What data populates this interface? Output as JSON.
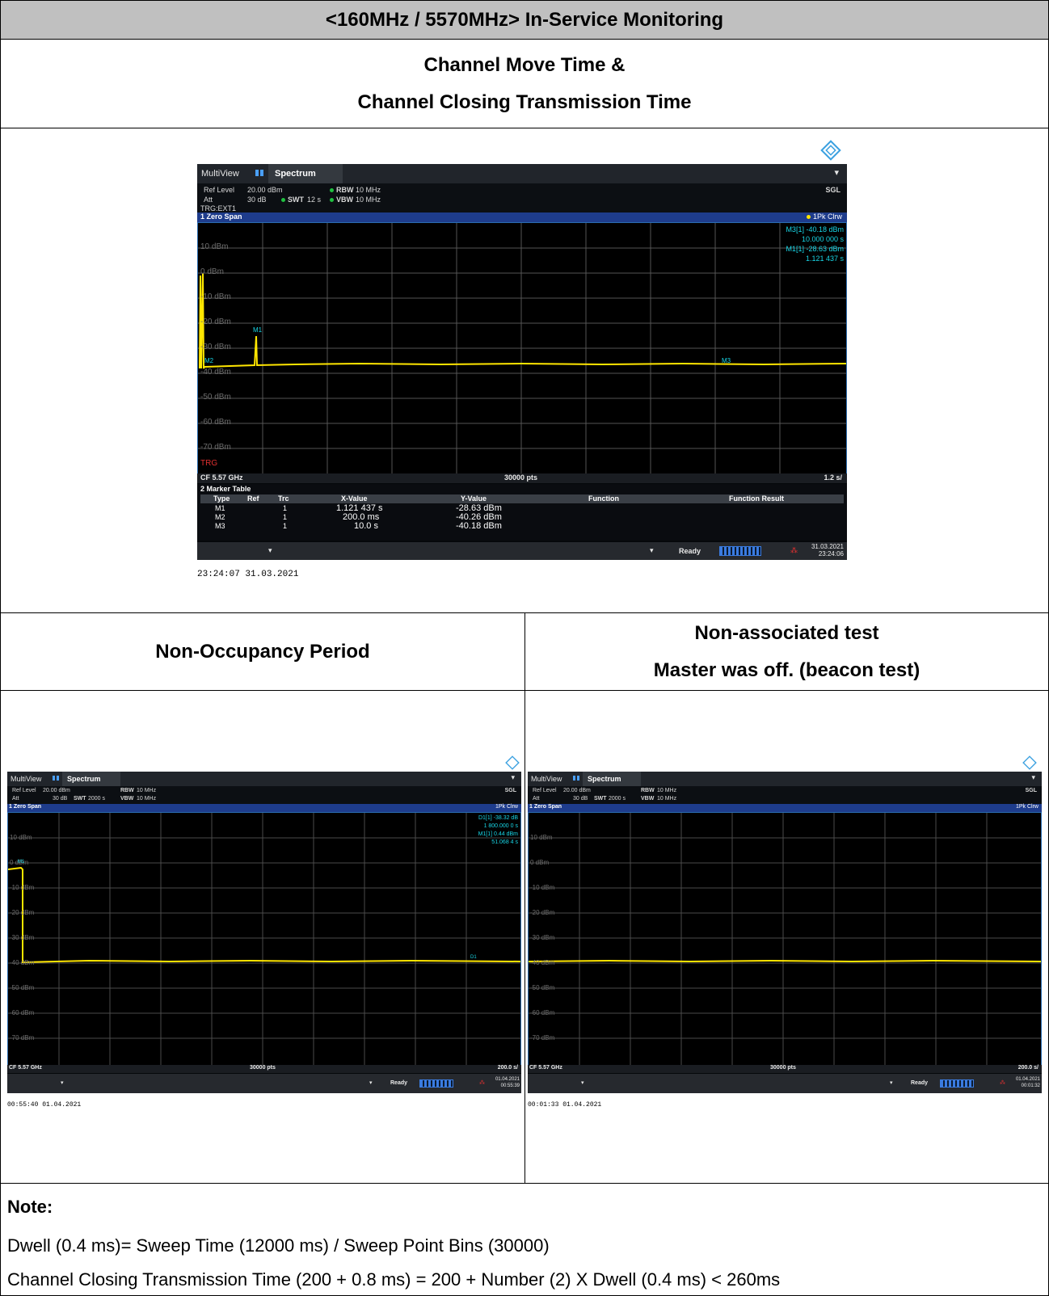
{
  "header": {
    "title": "<160MHz / 5570MHz> In-Service Monitoring"
  },
  "sub": {
    "line1": "Channel Move Time &",
    "line2": "Channel Closing Transmission Time"
  },
  "shot_main": {
    "tab": "Spectrum",
    "app": "MultiView",
    "ref_level": "Ref Level",
    "ref_val": "20.00 dBm",
    "att": "Att",
    "att_val": "30 dB",
    "swt": "SWT",
    "swt_val": "12 s",
    "rbw": "RBW",
    "rbw_val": "10 MHz",
    "vbw": "VBW",
    "vbw_val": "10 MHz",
    "trg": "TRG:EXT1",
    "sgl": "SGL",
    "window": "1 Zero Span",
    "trace": "1Pk Clrw",
    "m3_label": "M3[1]",
    "m3_y": "-40.18 dBm",
    "m3_x": "10.000 000 s",
    "m1_label": "M1[1]",
    "m1_y": "-28.63 dBm",
    "m1_x": "1.121 437 s",
    "y_labels": [
      "10 dBm",
      "0 dBm",
      "-10 dBm",
      "-20 dBm",
      "-30 dBm",
      "-40 dBm",
      "-50 dBm",
      "-60 dBm",
      "-70 dBm"
    ],
    "trg_tag": "TRG",
    "cf": "CF 5.57 GHz",
    "pts": "30000 pts",
    "div": "1.2 s/",
    "mt_title": "2 Marker Table",
    "mt_cols": [
      "Type",
      "Ref",
      "Trc",
      "X-Value",
      "Y-Value",
      "Function",
      "Function Result"
    ],
    "mt_rows": [
      {
        "type": "M1",
        "ref": "",
        "trc": "1",
        "x": "1.121 437 s",
        "y": "-28.63 dBm"
      },
      {
        "type": "M2",
        "ref": "",
        "trc": "1",
        "x": "200.0 ms",
        "y": "-40.26 dBm"
      },
      {
        "type": "M3",
        "ref": "",
        "trc": "1",
        "x": "10.0 s",
        "y": "-40.18 dBm"
      }
    ],
    "status": "Ready",
    "date": "31.03.2021",
    "time": "23:24:06",
    "markers": {
      "m1": "M1",
      "m2": "M2",
      "m3": "M3"
    },
    "timestamp": "23:24:07  31.03.2021"
  },
  "heads": {
    "left": "Non-Occupancy Period",
    "right_line1": "Non-associated test",
    "right_line2": "Master was off. (beacon test)"
  },
  "shot_left": {
    "app": "MultiView",
    "tab": "Spectrum",
    "ref_level": "Ref Level",
    "ref_val": "20.00 dBm",
    "att": "Att",
    "att_val": "30 dB",
    "swt": "SWT",
    "swt_val": "2000 s",
    "rbw": "RBW",
    "rbw_val": "10 MHz",
    "vbw": "VBW",
    "vbw_val": "10 MHz",
    "sgl": "SGL",
    "window": "1 Zero Span",
    "trace": "1Pk Clrw",
    "d1_label": "D1[1]",
    "d1_y": "-38.32 dB",
    "d1_x": "1 800.000 0 s",
    "m1_label": "M1[1]",
    "m1_y": "0.44 dBm",
    "m1_x": "51.068 4 s",
    "m1_mark": "M1",
    "d1_mark": "D1",
    "y_labels": [
      "10 dBm",
      "0 dBm",
      "-10 dBm",
      "-20 dBm",
      "-30 dBm",
      "-40 dBm",
      "-50 dBm",
      "-60 dBm",
      "-70 dBm"
    ],
    "cf": "CF 5.57 GHz",
    "pts": "30000 pts",
    "div": "200.0 s/",
    "status": "Ready",
    "date": "01.04.2021",
    "time": "00:55:39",
    "timestamp": "00:55:40  01.04.2021"
  },
  "shot_right": {
    "app": "MultiView",
    "tab": "Spectrum",
    "ref_level": "Ref Level",
    "ref_val": "20.00 dBm",
    "att": "Att",
    "att_val": "30 dB",
    "swt": "SWT",
    "swt_val": "2000 s",
    "rbw": "RBW",
    "rbw_val": "10 MHz",
    "vbw": "VBW",
    "vbw_val": "10 MHz",
    "sgl": "SGL",
    "window": "1 Zero Span",
    "trace": "1Pk Clrw",
    "y_labels": [
      "10 dBm",
      "0 dBm",
      "-10 dBm",
      "-20 dBm",
      "-30 dBm",
      "-40 dBm",
      "-50 dBm",
      "-60 dBm",
      "-70 dBm"
    ],
    "cf": "CF 5.57 GHz",
    "pts": "30000 pts",
    "div": "200.0 s/",
    "status": "Ready",
    "date": "01.04.2021",
    "time": "00:01:32",
    "timestamp": "00:01:33  01.04.2021"
  },
  "note": {
    "title": "Note:",
    "line1": "Dwell (0.4 ms)= Sweep Time (12000 ms) / Sweep Point Bins (30000)",
    "line2": "Channel Closing Transmission Time (200 + 0.8 ms) = 200 + Number (2) X Dwell (0.4 ms) < 260ms"
  },
  "colors": {
    "trace": "#ffe600",
    "marker": "#18d6e6",
    "bluebar": "#1e3c8c"
  }
}
